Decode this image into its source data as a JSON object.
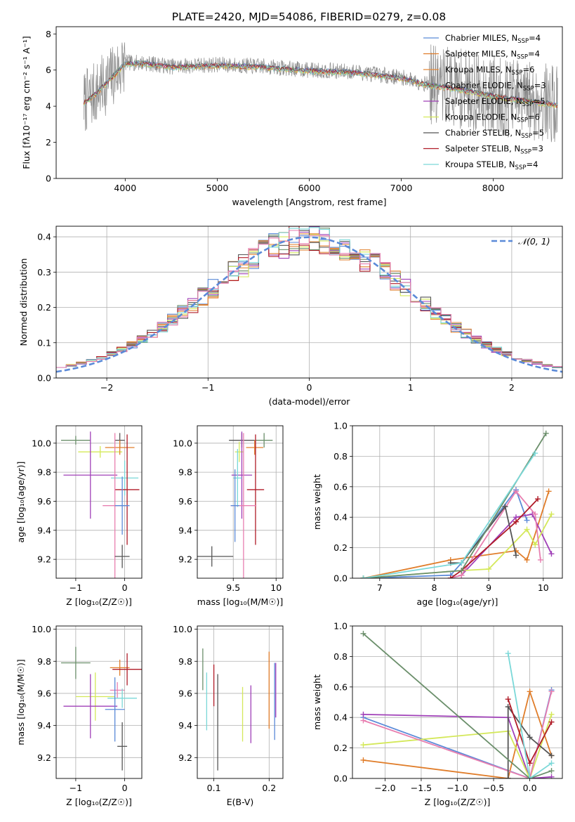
{
  "figure_title": "PLATE=2420, MJD=54086, FIBERID=0279, z=0.08",
  "chart_data": [
    {
      "id": "spectrum",
      "type": "line",
      "title": "PLATE=2420, MJD=54086, FIBERID=0279, z=0.08",
      "xlabel": "wavelength [Angstrom, rest frame]",
      "ylabel": "Flux [fλ10⁻¹⁷ erg cm⁻² s⁻¹ A⁻¹]",
      "xlim": [
        3250,
        8750
      ],
      "ylim": [
        0,
        8.4
      ],
      "xticks": [
        4000,
        5000,
        6000,
        7000,
        8000
      ],
      "yticks": [
        0,
        2,
        4,
        6,
        8
      ],
      "grid": false,
      "legend_position": "right",
      "continuum_points": [
        [
          3550,
          4.2
        ],
        [
          3700,
          4.8
        ],
        [
          3850,
          5.6
        ],
        [
          4000,
          6.4
        ],
        [
          4200,
          6.4
        ],
        [
          4500,
          6.2
        ],
        [
          5000,
          6.3
        ],
        [
          5500,
          6.2
        ],
        [
          6000,
          6.0
        ],
        [
          6500,
          5.9
        ],
        [
          7000,
          5.6
        ],
        [
          7300,
          5.2
        ],
        [
          7600,
          5.0
        ],
        [
          8000,
          4.6
        ],
        [
          8400,
          4.3
        ],
        [
          8700,
          4.1
        ]
      ],
      "legend": [
        {
          "label": "Chabrier MILES, N",
          "sub": "SSP",
          "tail": "=4",
          "color": "#5b8ad8"
        },
        {
          "label": "Salpeter MILES, N",
          "sub": "SSP",
          "tail": "=4",
          "color": "#e07d2a"
        },
        {
          "label": "Kroupa MILES, N",
          "sub": "SSP",
          "tail": "=6",
          "color": "#e38a3c"
        },
        {
          "label": "Chabrier ELODIE, N",
          "sub": "SSP",
          "tail": "=3",
          "color": "#6b8f6b"
        },
        {
          "label": "Salpeter ELODIE, N",
          "sub": "SSP",
          "tail": "=5",
          "color": "#a040b8"
        },
        {
          "label": "Kroupa ELODIE, N",
          "sub": "SSP",
          "tail": "=6",
          "color": "#d4e85a"
        },
        {
          "label": "Chabrier STELIB, N",
          "sub": "SSP",
          "tail": "=5",
          "color": "#555555"
        },
        {
          "label": "Salpeter STELIB, N",
          "sub": "SSP",
          "tail": "=3",
          "color": "#b01c28"
        },
        {
          "label": "Kroupa STELIB, N",
          "sub": "SSP",
          "tail": "=4",
          "color": "#7ad8d8"
        }
      ]
    },
    {
      "id": "residuals",
      "type": "histogram",
      "xlabel": "(data-model)/error",
      "ylabel": "Normed distribution",
      "xlim": [
        -2.5,
        2.5
      ],
      "ylim": [
        0,
        0.43
      ],
      "xticks": [
        -2,
        -1,
        0,
        1,
        2
      ],
      "yticks": [
        0.0,
        0.1,
        0.2,
        0.3,
        0.4
      ],
      "grid": true,
      "bin_width": 0.1,
      "legend": {
        "label": "𝒩(0, 1)",
        "color": "#5b8ad8",
        "position": "top-right"
      }
    },
    {
      "id": "age-vs-Z",
      "type": "errorbar",
      "xlabel": "Z [log₁₀(Z/Z☉)]",
      "ylabel": "age  [log₁₀(age/yr)]",
      "xlim": [
        -1.4,
        0.35
      ],
      "ylim": [
        9.07,
        10.12
      ],
      "xticks": [
        -1,
        0
      ],
      "yticks": [
        9.2,
        9.4,
        9.6,
        9.8,
        10.0
      ],
      "grid": true,
      "points": [
        {
          "x": -1.0,
          "xerr": 0.3,
          "y": 10.02,
          "yerr": 0.03,
          "color": "#6b8f6b"
        },
        {
          "x": -0.1,
          "xerr": 0.1,
          "y": 10.02,
          "yerr": 0.05,
          "color": "#555555"
        },
        {
          "x": -0.5,
          "xerr": 0.45,
          "y": 9.94,
          "yerr": 0.04,
          "color": "#d4e85a"
        },
        {
          "x": -0.1,
          "xerr": 0.3,
          "y": 9.97,
          "yerr": 0.05,
          "color": "#e07d2a"
        },
        {
          "x": -0.7,
          "xerr": 0.55,
          "y": 9.78,
          "yerr": 0.3,
          "color": "#a040b8"
        },
        {
          "x": 0.0,
          "xerr": 0.28,
          "y": 9.76,
          "yerr": 0.12,
          "color": "#7ad8d8"
        },
        {
          "x": 0.05,
          "xerr": 0.25,
          "y": 9.68,
          "yerr": 0.38,
          "color": "#b01c28"
        },
        {
          "x": -0.2,
          "xerr": 0.25,
          "y": 9.57,
          "yerr": 0.5,
          "color": "#e87fb0"
        },
        {
          "x": -0.05,
          "xerr": 0.15,
          "y": 9.57,
          "yerr": 0.2,
          "color": "#5b8ad8"
        },
        {
          "x": -0.05,
          "xerr": 0.15,
          "y": 9.22,
          "yerr": 0.08,
          "color": "#555555"
        }
      ]
    },
    {
      "id": "age-vs-mass",
      "type": "errorbar",
      "xlabel": "mass [log₁₀(M/M☉)]",
      "ylabel": "",
      "xlim": [
        9.08,
        10.08
      ],
      "ylim": [
        9.07,
        10.12
      ],
      "xticks": [
        9.5,
        10.0
      ],
      "yticks": [
        9.2,
        9.4,
        9.6,
        9.8,
        10.0
      ],
      "grid": true,
      "points": [
        {
          "x": 9.6,
          "xerr": 0.15,
          "y": 10.02,
          "yerr": 0.05,
          "color": "#555555"
        },
        {
          "x": 9.86,
          "xerr": 0.1,
          "y": 10.02,
          "yerr": 0.05,
          "color": "#6b8f6b"
        },
        {
          "x": 9.75,
          "xerr": 0.1,
          "y": 9.97,
          "yerr": 0.05,
          "color": "#e07d2a"
        },
        {
          "x": 9.57,
          "xerr": 0.05,
          "y": 9.94,
          "yerr": 0.07,
          "color": "#d4e85a"
        },
        {
          "x": 9.6,
          "xerr": 0.12,
          "y": 9.78,
          "yerr": 0.3,
          "color": "#a040b8"
        },
        {
          "x": 9.55,
          "xerr": 0.05,
          "y": 9.76,
          "yerr": 0.2,
          "color": "#7ad8d8"
        },
        {
          "x": 9.76,
          "xerr": 0.1,
          "y": 9.68,
          "yerr": 0.38,
          "color": "#b01c28"
        },
        {
          "x": 9.62,
          "xerr": 0.15,
          "y": 9.57,
          "yerr": 0.5,
          "color": "#e87fb0"
        },
        {
          "x": 9.52,
          "xerr": 0.05,
          "y": 9.57,
          "yerr": 0.25,
          "color": "#5b8ad8"
        },
        {
          "x": 9.25,
          "xerr": 0.25,
          "y": 9.22,
          "yerr": 0.07,
          "color": "#555555"
        }
      ]
    },
    {
      "id": "massweight-vs-age",
      "type": "line",
      "xlabel": "age  [log₁₀(age/yr)]",
      "ylabel": "mass weight",
      "xlim": [
        6.5,
        10.35
      ],
      "ylim": [
        0,
        1.0
      ],
      "xticks": [
        7,
        8,
        9,
        10
      ],
      "yticks": [
        0.0,
        0.2,
        0.4,
        0.6,
        0.8,
        1.0
      ],
      "grid": true,
      "series": [
        {
          "color": "#5b8ad8",
          "x": [
            6.7,
            8.3,
            8.5,
            9.5,
            9.7
          ],
          "y": [
            0.0,
            0.02,
            0.1,
            0.58,
            0.38
          ]
        },
        {
          "color": "#e07d2a",
          "x": [
            6.7,
            8.3,
            9.5,
            9.7,
            10.1
          ],
          "y": [
            0.0,
            0.12,
            0.18,
            0.12,
            0.57
          ]
        },
        {
          "color": "#a040b8",
          "x": [
            8.3,
            8.5,
            9.5,
            9.8,
            10.15
          ],
          "y": [
            0.0,
            0.02,
            0.4,
            0.42,
            0.16
          ]
        },
        {
          "color": "#d4e85a",
          "x": [
            6.7,
            8.5,
            9.0,
            9.7,
            9.85,
            10.15
          ],
          "y": [
            0.0,
            0.05,
            0.06,
            0.32,
            0.22,
            0.42
          ]
        },
        {
          "color": "#e87fb0",
          "x": [
            8.3,
            8.5,
            9.5,
            9.85,
            9.95
          ],
          "y": [
            0.0,
            0.02,
            0.57,
            0.42,
            0.12
          ]
        },
        {
          "color": "#555555",
          "x": [
            8.3,
            8.5,
            9.3,
            9.5
          ],
          "y": [
            0.1,
            0.1,
            0.47,
            0.15
          ]
        },
        {
          "color": "#b01c28",
          "x": [
            8.3,
            8.5,
            9.5,
            9.9
          ],
          "y": [
            0.0,
            0.05,
            0.37,
            0.52
          ]
        },
        {
          "color": "#6b8f6b",
          "x": [
            6.7,
            8.5,
            10.05
          ],
          "y": [
            0.0,
            0.05,
            0.95
          ]
        },
        {
          "color": "#7ad8d8",
          "x": [
            6.7,
            8.5,
            9.85
          ],
          "y": [
            0.0,
            0.1,
            0.82
          ]
        }
      ]
    },
    {
      "id": "mass-vs-Z",
      "type": "errorbar",
      "xlabel": "Z [log₁₀(Z/Z☉)]",
      "ylabel": "mass [log₁₀(M/M☉)]",
      "xlim": [
        -1.4,
        0.35
      ],
      "ylim": [
        9.07,
        10.02
      ],
      "xticks": [
        -1,
        0
      ],
      "yticks": [
        9.2,
        9.4,
        9.6,
        9.8,
        10.0
      ],
      "grid": true,
      "points": [
        {
          "x": -1.0,
          "xerr": 0.3,
          "y": 9.79,
          "yerr": 0.1,
          "color": "#6b8f6b"
        },
        {
          "x": -0.1,
          "xerr": 0.2,
          "y": 9.76,
          "yerr": 0.05,
          "color": "#e07d2a"
        },
        {
          "x": 0.05,
          "xerr": 0.3,
          "y": 9.75,
          "yerr": 0.1,
          "color": "#b01c28"
        },
        {
          "x": -0.15,
          "xerr": 0.15,
          "y": 9.62,
          "yerr": 0.05,
          "color": "#e87fb0"
        },
        {
          "x": -0.6,
          "xerr": 0.4,
          "y": 9.58,
          "yerr": 0.15,
          "color": "#d4e85a"
        },
        {
          "x": -0.05,
          "xerr": 0.3,
          "y": 9.57,
          "yerr": 0.06,
          "color": "#7ad8d8"
        },
        {
          "x": -0.7,
          "xerr": 0.55,
          "y": 9.52,
          "yerr": 0.2,
          "color": "#a040b8"
        },
        {
          "x": -0.2,
          "xerr": 0.2,
          "y": 9.5,
          "yerr": 0.2,
          "color": "#5b8ad8"
        },
        {
          "x": -0.05,
          "xerr": 0.1,
          "y": 9.27,
          "yerr": 0.15,
          "color": "#555555"
        }
      ]
    },
    {
      "id": "mass-vs-EBV",
      "type": "errorbar",
      "xlabel": "E(B-V)",
      "ylabel": "",
      "xlim": [
        0.07,
        0.225
      ],
      "ylim": [
        9.07,
        10.02
      ],
      "xticks": [
        0.1,
        0.2
      ],
      "yticks": [
        9.2,
        9.4,
        9.6,
        9.8,
        10.0
      ],
      "grid": true,
      "points": [
        {
          "x": 0.08,
          "y": 9.75,
          "yerr": 0.13,
          "color": "#6b8f6b"
        },
        {
          "x": 0.087,
          "y": 9.55,
          "yerr": 0.18,
          "color": "#7ad8d8"
        },
        {
          "x": 0.1,
          "y": 9.65,
          "yerr": 0.13,
          "color": "#b01c28"
        },
        {
          "x": 0.107,
          "y": 9.42,
          "yerr": 0.3,
          "color": "#555555"
        },
        {
          "x": 0.152,
          "y": 9.47,
          "yerr": 0.17,
          "color": "#d4e85a"
        },
        {
          "x": 0.167,
          "y": 9.47,
          "yerr": 0.18,
          "color": "#a040b8"
        },
        {
          "x": 0.2,
          "y": 9.62,
          "yerr": 0.24,
          "color": "#e07d2a"
        },
        {
          "x": 0.21,
          "y": 9.55,
          "yerr": 0.24,
          "color": "#5b8ad8"
        },
        {
          "x": 0.212,
          "y": 9.62,
          "yerr": 0.17,
          "color": "#a040b8"
        }
      ]
    },
    {
      "id": "massweight-vs-Z",
      "type": "line",
      "xlabel": "Z [log₁₀(Z/Z☉)]",
      "ylabel": "mass weight",
      "xlim": [
        -2.45,
        0.45
      ],
      "ylim": [
        0,
        1.0
      ],
      "xticks": [
        -2.0,
        -1.5,
        -1.0,
        -0.5,
        0.0
      ],
      "yticks": [
        0.0,
        0.2,
        0.4,
        0.6,
        0.8,
        1.0
      ],
      "grid": true,
      "series": [
        {
          "color": "#5b8ad8",
          "x": [
            -2.3,
            0.0,
            0.3
          ],
          "y": [
            0.4,
            0.0,
            0.58
          ]
        },
        {
          "color": "#e07d2a",
          "x": [
            -2.3,
            -0.3,
            0.0,
            0.3
          ],
          "y": [
            0.12,
            0.0,
            0.57,
            0.15
          ]
        },
        {
          "color": "#a040b8",
          "x": [
            -2.3,
            -0.3,
            0.0,
            0.3
          ],
          "y": [
            0.42,
            0.4,
            0.0,
            0.01
          ]
        },
        {
          "color": "#d4e85a",
          "x": [
            -2.3,
            -0.3,
            0.0,
            0.3
          ],
          "y": [
            0.22,
            0.31,
            0.0,
            0.42
          ]
        },
        {
          "color": "#e87fb0",
          "x": [
            -2.3,
            0.0,
            0.3
          ],
          "y": [
            0.38,
            0.0,
            0.57
          ]
        },
        {
          "color": "#555555",
          "x": [
            -0.3,
            -0.3,
            0.0,
            0.3
          ],
          "y": [
            0.0,
            0.47,
            0.27,
            0.15
          ]
        },
        {
          "color": "#b01c28",
          "x": [
            -0.3,
            0.0,
            0.3
          ],
          "y": [
            0.52,
            0.1,
            0.37
          ]
        },
        {
          "color": "#6b8f6b",
          "x": [
            -2.3,
            0.0,
            0.3
          ],
          "y": [
            0.95,
            0.0,
            0.05
          ]
        },
        {
          "color": "#7ad8d8",
          "x": [
            -0.3,
            0.0,
            0.3
          ],
          "y": [
            0.82,
            0.0,
            0.1
          ]
        }
      ]
    }
  ]
}
